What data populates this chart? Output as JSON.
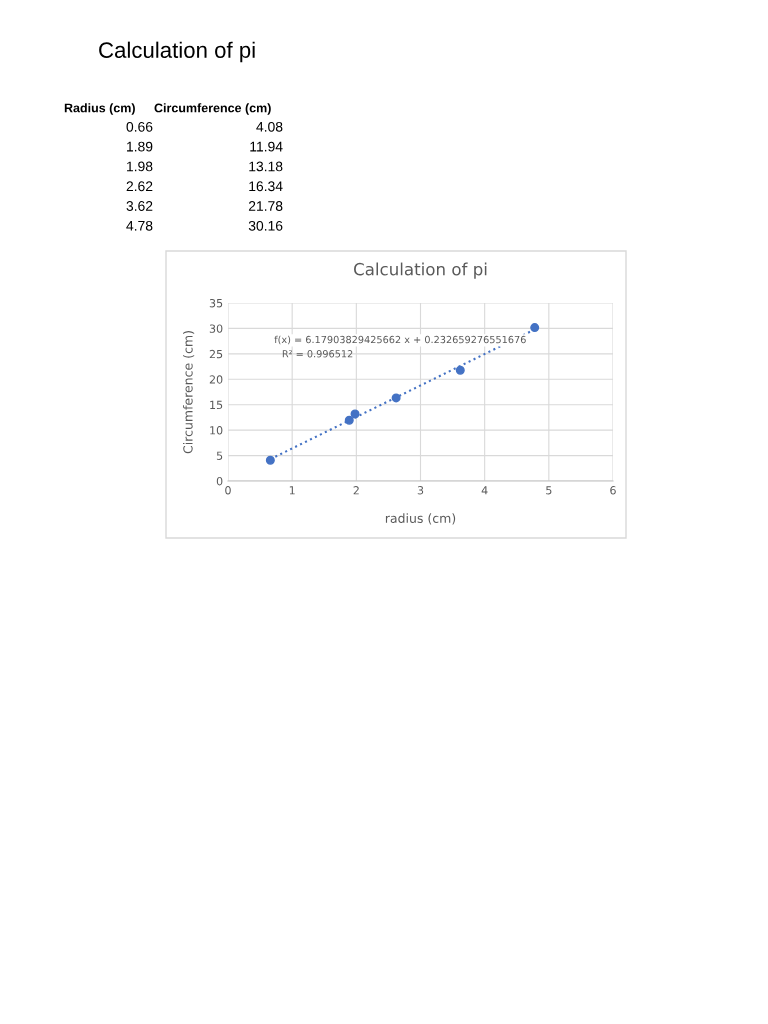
{
  "chart_data": {
    "type": "scatter",
    "title": "Calculation of pi",
    "xlabel": "radius (cm)",
    "ylabel": "Circumference (cm)",
    "xlim": [
      0,
      6
    ],
    "xticks": [
      0,
      1,
      2,
      3,
      4,
      5,
      6
    ],
    "ylim": [
      0,
      35
    ],
    "yticks": [
      0,
      5,
      10,
      15,
      20,
      25,
      30,
      35
    ],
    "grid": true,
    "legend": false,
    "marker": "circle",
    "series": [
      {
        "color": "#4472c4",
        "x": [
          0.66,
          1.89,
          1.98,
          2.62,
          3.62,
          4.78
        ],
        "values": [
          4.08,
          11.94,
          13.18,
          16.34,
          21.78,
          30.16
        ]
      },
      {
        "type": "line",
        "color": "#4472c4",
        "line_style": "dotted",
        "marker": "none",
        "x": [
          0.66,
          4.78
        ],
        "values": [
          4.3,
          29.8
        ]
      }
    ],
    "annotations": [
      "Calculation of pi",
      "Radius (cm)",
      "Circumference (cm)",
      "0.66",
      "4.08",
      "1.89",
      "11.94",
      "1.98",
      "13.18",
      "2.62",
      "16.34",
      "3.62",
      "21.78",
      "4.78",
      "30.16",
      "f(x) = 6.17903829425662 x + 0.232659276551676",
      "R² = 0.996512"
    ]
  }
}
